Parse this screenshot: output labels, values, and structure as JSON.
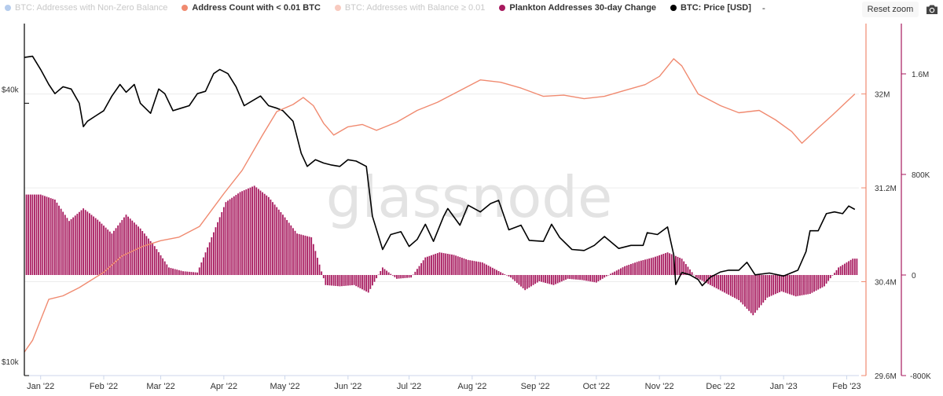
{
  "legend": {
    "items": [
      {
        "label": "BTC: Addresses with Non-Zero Balance",
        "color": "#5b8fd6",
        "state": "hidden"
      },
      {
        "label": "Address Count with < 0.01 BTC",
        "color": "#f08a70",
        "state": "shown"
      },
      {
        "label": "BTC: Addresses with Balance ≥ 0.01",
        "color": "#f08a70",
        "state": "hidden"
      },
      {
        "label": "Plankton Addresses 30-day Change",
        "color": "#a7195e",
        "state": "shown"
      },
      {
        "label": "BTC: Price [USD]",
        "color": "#000000",
        "state": "shown"
      }
    ],
    "trailing": "-"
  },
  "toolbar": {
    "reset_zoom": "Reset zoom",
    "camera_icon": "camera-icon"
  },
  "watermark": "glassnode",
  "chart_data": {
    "type": "line",
    "x_range": [
      "2021-12-24",
      "2023-02-07"
    ],
    "x_ticks": [
      {
        "label": "Jan '22",
        "date": "2022-01-01"
      },
      {
        "label": "Feb '22",
        "date": "2022-02-01"
      },
      {
        "label": "Mar '22",
        "date": "2022-03-01"
      },
      {
        "label": "Apr '22",
        "date": "2022-04-01"
      },
      {
        "label": "May '22",
        "date": "2022-05-01"
      },
      {
        "label": "Jun '22",
        "date": "2022-06-01"
      },
      {
        "label": "Jul '22",
        "date": "2022-07-01"
      },
      {
        "label": "Aug '22",
        "date": "2022-08-01"
      },
      {
        "label": "Sep '22",
        "date": "2022-09-01"
      },
      {
        "label": "Oct '22",
        "date": "2022-10-01"
      },
      {
        "label": "Nov '22",
        "date": "2022-11-01"
      },
      {
        "label": "Dec '22",
        "date": "2022-12-01"
      },
      {
        "label": "Jan '23",
        "date": "2023-01-01"
      },
      {
        "label": "Feb '23",
        "date": "2023-02-01"
      }
    ],
    "axes": {
      "price": {
        "scale": "log",
        "range": [
          10000,
          60000
        ],
        "ticks": [
          {
            "label": "$10k",
            "value": 10000
          },
          {
            "label": "$40k",
            "value": 40000
          }
        ],
        "position": "left",
        "gridlines": true
      },
      "count": {
        "range": [
          29600000,
          32600000
        ],
        "ticks": [
          {
            "label": "29.6M",
            "value": 29600000
          },
          {
            "label": "30.4M",
            "value": 30400000
          },
          {
            "label": "31.2M",
            "value": 31200000
          },
          {
            "label": "32M",
            "value": 32000000
          }
        ],
        "position": "right",
        "color": "#f08a70"
      },
      "change": {
        "range": [
          -800000,
          2000000
        ],
        "ticks": [
          {
            "label": "-800K",
            "value": -800000
          },
          {
            "label": "0",
            "value": 0
          },
          {
            "label": "800K",
            "value": 800000
          },
          {
            "label": "1.6M",
            "value": 1600000
          }
        ],
        "position": "right",
        "color": "#a7195e"
      }
    },
    "series": [
      {
        "name": "BTC: Price [USD]",
        "type": "line",
        "axis": "price",
        "color": "#000000",
        "points": [
          [
            "2021-12-24",
            50500
          ],
          [
            "2021-12-28",
            50800
          ],
          [
            "2022-01-01",
            47500
          ],
          [
            "2022-01-05",
            44000
          ],
          [
            "2022-01-08",
            42000
          ],
          [
            "2022-01-12",
            43500
          ],
          [
            "2022-01-16",
            43000
          ],
          [
            "2022-01-20",
            40000
          ],
          [
            "2022-01-22",
            35500
          ],
          [
            "2022-01-24",
            36500
          ],
          [
            "2022-01-28",
            37500
          ],
          [
            "2022-02-01",
            38500
          ],
          [
            "2022-02-05",
            41500
          ],
          [
            "2022-02-09",
            44000
          ],
          [
            "2022-02-12",
            42300
          ],
          [
            "2022-02-16",
            44000
          ],
          [
            "2022-02-19",
            40000
          ],
          [
            "2022-02-24",
            38000
          ],
          [
            "2022-02-28",
            43000
          ],
          [
            "2022-03-03",
            42000
          ],
          [
            "2022-03-07",
            38500
          ],
          [
            "2022-03-11",
            39000
          ],
          [
            "2022-03-15",
            39500
          ],
          [
            "2022-03-19",
            42000
          ],
          [
            "2022-03-23",
            42500
          ],
          [
            "2022-03-27",
            46500
          ],
          [
            "2022-03-30",
            47500
          ],
          [
            "2022-04-03",
            46500
          ],
          [
            "2022-04-07",
            43500
          ],
          [
            "2022-04-11",
            39500
          ],
          [
            "2022-04-15",
            40500
          ],
          [
            "2022-04-19",
            41500
          ],
          [
            "2022-04-23",
            39500
          ],
          [
            "2022-04-27",
            39000
          ],
          [
            "2022-04-30",
            38500
          ],
          [
            "2022-05-05",
            36500
          ],
          [
            "2022-05-09",
            31000
          ],
          [
            "2022-05-12",
            29000
          ],
          [
            "2022-05-16",
            30000
          ],
          [
            "2022-05-20",
            29500
          ],
          [
            "2022-05-24",
            29200
          ],
          [
            "2022-05-28",
            29000
          ],
          [
            "2022-06-01",
            30000
          ],
          [
            "2022-06-05",
            29800
          ],
          [
            "2022-06-10",
            29000
          ],
          [
            "2022-06-13",
            22500
          ],
          [
            "2022-06-18",
            19000
          ],
          [
            "2022-06-22",
            20500
          ],
          [
            "2022-06-27",
            20800
          ],
          [
            "2022-07-01",
            19300
          ],
          [
            "2022-07-05",
            20000
          ],
          [
            "2022-07-09",
            21600
          ],
          [
            "2022-07-13",
            19800
          ],
          [
            "2022-07-18",
            22500
          ],
          [
            "2022-07-20",
            23400
          ],
          [
            "2022-07-26",
            21500
          ],
          [
            "2022-07-30",
            23800
          ],
          [
            "2022-08-05",
            23000
          ],
          [
            "2022-08-10",
            24000
          ],
          [
            "2022-08-14",
            24400
          ],
          [
            "2022-08-19",
            21000
          ],
          [
            "2022-08-25",
            21500
          ],
          [
            "2022-08-29",
            19900
          ],
          [
            "2022-09-05",
            19800
          ],
          [
            "2022-09-09",
            21600
          ],
          [
            "2022-09-13",
            20200
          ],
          [
            "2022-09-19",
            19000
          ],
          [
            "2022-09-25",
            18900
          ],
          [
            "2022-09-30",
            19400
          ],
          [
            "2022-10-05",
            20300
          ],
          [
            "2022-10-12",
            19100
          ],
          [
            "2022-10-18",
            19400
          ],
          [
            "2022-10-24",
            19400
          ],
          [
            "2022-10-26",
            20700
          ],
          [
            "2022-10-31",
            20500
          ],
          [
            "2022-11-05",
            21300
          ],
          [
            "2022-11-08",
            18500
          ],
          [
            "2022-11-09",
            15900
          ],
          [
            "2022-11-12",
            16900
          ],
          [
            "2022-11-16",
            16700
          ],
          [
            "2022-11-20",
            16300
          ],
          [
            "2022-11-22",
            15800
          ],
          [
            "2022-11-26",
            16500
          ],
          [
            "2022-12-01",
            16950
          ],
          [
            "2022-12-05",
            17100
          ],
          [
            "2022-12-10",
            17100
          ],
          [
            "2022-12-14",
            17800
          ],
          [
            "2022-12-18",
            16700
          ],
          [
            "2022-12-25",
            16850
          ],
          [
            "2023-01-01",
            16600
          ],
          [
            "2023-01-08",
            17100
          ],
          [
            "2023-01-12",
            18800
          ],
          [
            "2023-01-14",
            20900
          ],
          [
            "2023-01-18",
            20900
          ],
          [
            "2023-01-22",
            22800
          ],
          [
            "2023-01-26",
            23000
          ],
          [
            "2023-01-30",
            22800
          ],
          [
            "2023-02-02",
            23700
          ],
          [
            "2023-02-05",
            23300
          ]
        ]
      },
      {
        "name": "Address Count with < 0.01 BTC",
        "type": "line",
        "axis": "count",
        "color": "#f08a70",
        "points": [
          [
            "2021-12-24",
            29800000
          ],
          [
            "2021-12-28",
            29900000
          ],
          [
            "2022-01-05",
            30250000
          ],
          [
            "2022-01-12",
            30280000
          ],
          [
            "2022-01-20",
            30350000
          ],
          [
            "2022-02-01",
            30480000
          ],
          [
            "2022-02-10",
            30620000
          ],
          [
            "2022-02-20",
            30700000
          ],
          [
            "2022-03-01",
            30750000
          ],
          [
            "2022-03-10",
            30780000
          ],
          [
            "2022-03-20",
            30870000
          ],
          [
            "2022-04-01",
            31150000
          ],
          [
            "2022-04-10",
            31350000
          ],
          [
            "2022-04-20",
            31650000
          ],
          [
            "2022-04-27",
            31850000
          ],
          [
            "2022-05-05",
            31910000
          ],
          [
            "2022-05-10",
            31970000
          ],
          [
            "2022-05-15",
            31900000
          ],
          [
            "2022-05-20",
            31750000
          ],
          [
            "2022-05-25",
            31650000
          ],
          [
            "2022-06-01",
            31720000
          ],
          [
            "2022-06-08",
            31740000
          ],
          [
            "2022-06-15",
            31690000
          ],
          [
            "2022-06-25",
            31760000
          ],
          [
            "2022-07-05",
            31860000
          ],
          [
            "2022-07-15",
            31930000
          ],
          [
            "2022-07-25",
            32020000
          ],
          [
            "2022-08-05",
            32120000
          ],
          [
            "2022-08-15",
            32100000
          ],
          [
            "2022-08-25",
            32050000
          ],
          [
            "2022-09-05",
            31980000
          ],
          [
            "2022-09-15",
            31990000
          ],
          [
            "2022-09-25",
            31960000
          ],
          [
            "2022-10-05",
            31980000
          ],
          [
            "2022-10-15",
            32030000
          ],
          [
            "2022-10-25",
            32080000
          ],
          [
            "2022-11-01",
            32150000
          ],
          [
            "2022-11-08",
            32300000
          ],
          [
            "2022-11-12",
            32240000
          ],
          [
            "2022-11-20",
            32000000
          ],
          [
            "2022-12-01",
            31900000
          ],
          [
            "2022-12-10",
            31840000
          ],
          [
            "2022-12-20",
            31860000
          ],
          [
            "2022-12-28",
            31780000
          ],
          [
            "2023-01-05",
            31680000
          ],
          [
            "2023-01-10",
            31580000
          ],
          [
            "2023-01-18",
            31710000
          ],
          [
            "2023-01-25",
            31820000
          ],
          [
            "2023-02-05",
            32000000
          ]
        ]
      },
      {
        "name": "Plankton Addresses 30-day Change",
        "type": "bar",
        "axis": "change",
        "color": "#a7195e",
        "points": [
          [
            "2021-12-25",
            640000
          ],
          [
            "2022-01-01",
            640000
          ],
          [
            "2022-01-08",
            600000
          ],
          [
            "2022-01-15",
            430000
          ],
          [
            "2022-01-22",
            530000
          ],
          [
            "2022-01-29",
            440000
          ],
          [
            "2022-02-05",
            330000
          ],
          [
            "2022-02-12",
            480000
          ],
          [
            "2022-02-19",
            370000
          ],
          [
            "2022-02-26",
            230000
          ],
          [
            "2022-03-05",
            60000
          ],
          [
            "2022-03-12",
            30000
          ],
          [
            "2022-03-19",
            20000
          ],
          [
            "2022-03-26",
            300000
          ],
          [
            "2022-04-02",
            580000
          ],
          [
            "2022-04-09",
            660000
          ],
          [
            "2022-04-16",
            710000
          ],
          [
            "2022-04-23",
            620000
          ],
          [
            "2022-04-30",
            480000
          ],
          [
            "2022-05-07",
            330000
          ],
          [
            "2022-05-14",
            300000
          ],
          [
            "2022-05-21",
            -80000
          ],
          [
            "2022-05-28",
            -90000
          ],
          [
            "2022-06-04",
            -80000
          ],
          [
            "2022-06-11",
            -140000
          ],
          [
            "2022-06-18",
            60000
          ],
          [
            "2022-06-25",
            -30000
          ],
          [
            "2022-07-02",
            -20000
          ],
          [
            "2022-07-09",
            140000
          ],
          [
            "2022-07-16",
            180000
          ],
          [
            "2022-07-23",
            160000
          ],
          [
            "2022-07-30",
            120000
          ],
          [
            "2022-08-06",
            100000
          ],
          [
            "2022-08-13",
            40000
          ],
          [
            "2022-08-20",
            -20000
          ],
          [
            "2022-08-27",
            -120000
          ],
          [
            "2022-09-03",
            -50000
          ],
          [
            "2022-09-10",
            -80000
          ],
          [
            "2022-09-17",
            -30000
          ],
          [
            "2022-09-24",
            -40000
          ],
          [
            "2022-10-01",
            -60000
          ],
          [
            "2022-10-08",
            10000
          ],
          [
            "2022-10-15",
            70000
          ],
          [
            "2022-10-22",
            110000
          ],
          [
            "2022-10-29",
            140000
          ],
          [
            "2022-11-05",
            180000
          ],
          [
            "2022-11-12",
            130000
          ],
          [
            "2022-11-19",
            -20000
          ],
          [
            "2022-11-26",
            -80000
          ],
          [
            "2022-12-03",
            -140000
          ],
          [
            "2022-12-10",
            -200000
          ],
          [
            "2022-12-17",
            -320000
          ],
          [
            "2022-12-24",
            -180000
          ],
          [
            "2022-12-31",
            -130000
          ],
          [
            "2023-01-07",
            -170000
          ],
          [
            "2023-01-14",
            -150000
          ],
          [
            "2023-01-21",
            -90000
          ],
          [
            "2023-01-28",
            60000
          ],
          [
            "2023-02-04",
            130000
          ]
        ]
      }
    ]
  }
}
